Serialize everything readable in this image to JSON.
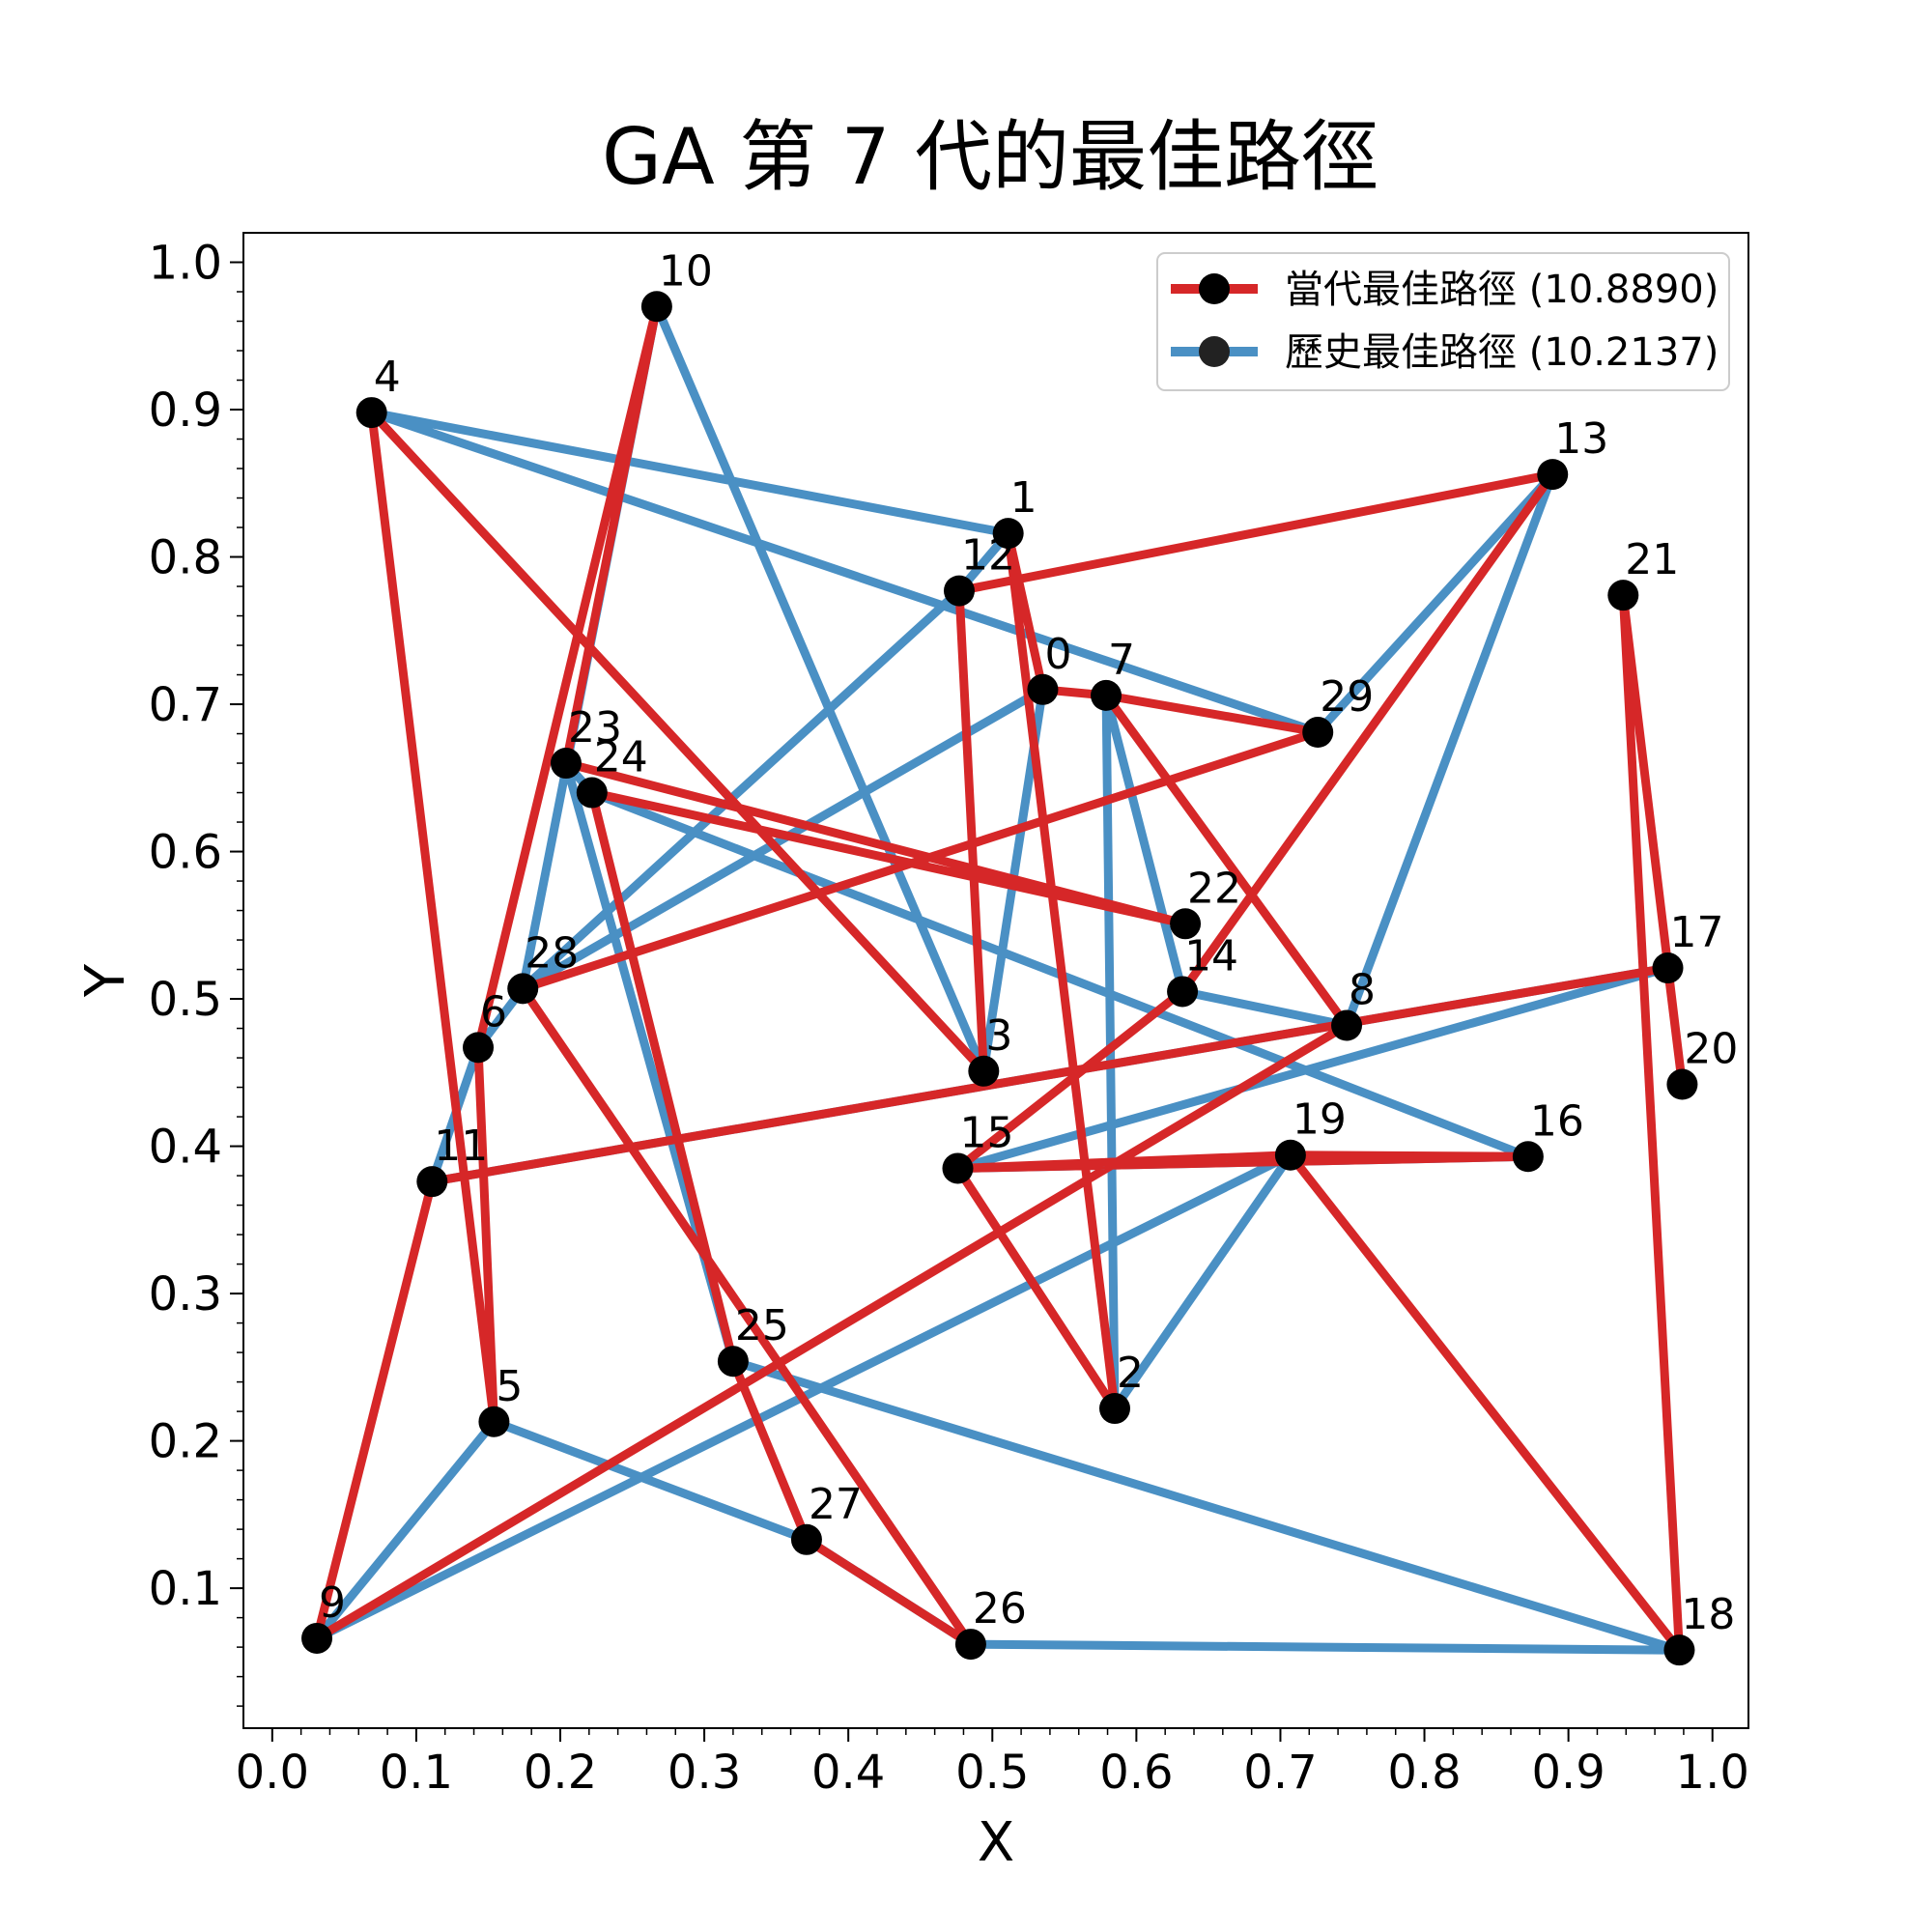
{
  "chart_data": {
    "type": "line",
    "title": "GA 第 7 代的最佳路徑",
    "xlabel": "X",
    "ylabel": "Y",
    "xlim": [
      -0.02,
      1.025
    ],
    "ylim": [
      0.005,
      1.02
    ],
    "xticks": [
      0.0,
      0.1,
      0.2,
      0.3,
      0.4,
      0.5,
      0.6,
      0.7,
      0.8,
      0.9,
      1.0
    ],
    "yticks": [
      0.1,
      0.2,
      0.3,
      0.4,
      0.5,
      0.6,
      0.7,
      0.8,
      0.9,
      1.0
    ],
    "xtick_labels": [
      "0.0",
      "0.1",
      "0.2",
      "0.3",
      "0.4",
      "0.5",
      "0.6",
      "0.7",
      "0.8",
      "0.9",
      "1.0"
    ],
    "ytick_labels": [
      "0.1",
      "0.2",
      "0.3",
      "0.4",
      "0.5",
      "0.6",
      "0.7",
      "0.8",
      "0.9",
      "1.0"
    ],
    "grid": false,
    "legend_position": "top-right",
    "points": [
      {
        "id": "0",
        "x": 0.535,
        "y": 0.71
      },
      {
        "id": "1",
        "x": 0.511,
        "y": 0.816
      },
      {
        "id": "2",
        "x": 0.585,
        "y": 0.222
      },
      {
        "id": "3",
        "x": 0.494,
        "y": 0.451
      },
      {
        "id": "4",
        "x": 0.069,
        "y": 0.898
      },
      {
        "id": "5",
        "x": 0.154,
        "y": 0.213
      },
      {
        "id": "6",
        "x": 0.143,
        "y": 0.467
      },
      {
        "id": "7",
        "x": 0.579,
        "y": 0.706
      },
      {
        "id": "8",
        "x": 0.746,
        "y": 0.482
      },
      {
        "id": "9",
        "x": 0.031,
        "y": 0.066
      },
      {
        "id": "10",
        "x": 0.267,
        "y": 0.97
      },
      {
        "id": "11",
        "x": 0.111,
        "y": 0.376
      },
      {
        "id": "12",
        "x": 0.477,
        "y": 0.777
      },
      {
        "id": "13",
        "x": 0.889,
        "y": 0.856
      },
      {
        "id": "14",
        "x": 0.632,
        "y": 0.505
      },
      {
        "id": "15",
        "x": 0.476,
        "y": 0.385
      },
      {
        "id": "16",
        "x": 0.872,
        "y": 0.393
      },
      {
        "id": "17",
        "x": 0.969,
        "y": 0.521
      },
      {
        "id": "18",
        "x": 0.977,
        "y": 0.058
      },
      {
        "id": "19",
        "x": 0.707,
        "y": 0.394
      },
      {
        "id": "20",
        "x": 0.979,
        "y": 0.442
      },
      {
        "id": "21",
        "x": 0.938,
        "y": 0.774
      },
      {
        "id": "22",
        "x": 0.634,
        "y": 0.551
      },
      {
        "id": "23",
        "x": 0.204,
        "y": 0.66
      },
      {
        "id": "24",
        "x": 0.222,
        "y": 0.64
      },
      {
        "id": "25",
        "x": 0.32,
        "y": 0.254
      },
      {
        "id": "26",
        "x": 0.485,
        "y": 0.062
      },
      {
        "id": "27",
        "x": 0.371,
        "y": 0.133
      },
      {
        "id": "28",
        "x": 0.174,
        "y": 0.507
      },
      {
        "id": "29",
        "x": 0.726,
        "y": 0.681
      }
    ],
    "series": [
      {
        "name": "當代最佳路徑 (10.8890)",
        "color": "#d62728",
        "route": [
          0,
          7,
          29,
          28,
          26,
          27,
          25,
          24,
          22,
          23,
          10,
          6,
          5,
          4,
          3,
          12,
          13,
          14,
          15,
          16,
          19,
          18,
          21,
          20,
          17,
          11,
          9,
          8,
          7,
          0,
          1,
          2,
          15,
          19,
          16
        ]
      },
      {
        "name": "歷史最佳路徑 (10.2137)",
        "color": "#4a90c4",
        "route": [
          4,
          29,
          13,
          8,
          14,
          7,
          2,
          19,
          9,
          5,
          27,
          26,
          18,
          25,
          23,
          24,
          16,
          16,
          15,
          17,
          11,
          6,
          28,
          0,
          3,
          10,
          28,
          12,
          1,
          4
        ]
      }
    ]
  }
}
